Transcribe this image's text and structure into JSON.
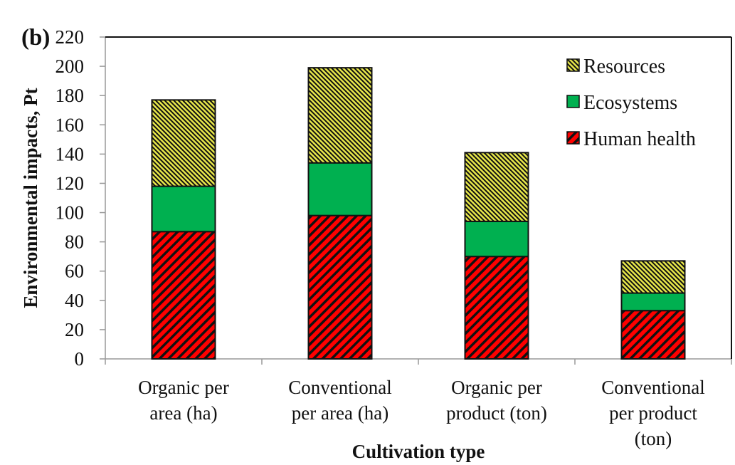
{
  "panel_label": "(b)",
  "chart_data": {
    "type": "bar",
    "stacked": true,
    "title": "",
    "xlabel": "Cultivation type",
    "ylabel": "Environmental impacts, Pt",
    "ylim": [
      0,
      220
    ],
    "yticks": [
      0,
      20,
      40,
      60,
      80,
      100,
      120,
      140,
      160,
      180,
      200,
      220
    ],
    "grid": false,
    "legend_position": "top-right",
    "categories": [
      [
        "Organic per",
        "area (ha)"
      ],
      [
        "Conventional",
        "per area (ha)"
      ],
      [
        "Organic per",
        "product (ton)"
      ],
      [
        "Conventional",
        "per product",
        "(ton)"
      ]
    ],
    "series": [
      {
        "name": "Human health",
        "color": "#ff0000",
        "pattern": "wide-backslash-hatch",
        "values": [
          87,
          98,
          70,
          33
        ]
      },
      {
        "name": "Ecosystems",
        "color": "#00b050",
        "pattern": "solid",
        "values": [
          31,
          36,
          24,
          12
        ]
      },
      {
        "name": "Resources",
        "color": "#e8e84a",
        "pattern": "fine-slash-hatch",
        "values": [
          59,
          65,
          47,
          22
        ]
      }
    ],
    "legend_order": [
      "Resources",
      "Ecosystems",
      "Human health"
    ]
  }
}
